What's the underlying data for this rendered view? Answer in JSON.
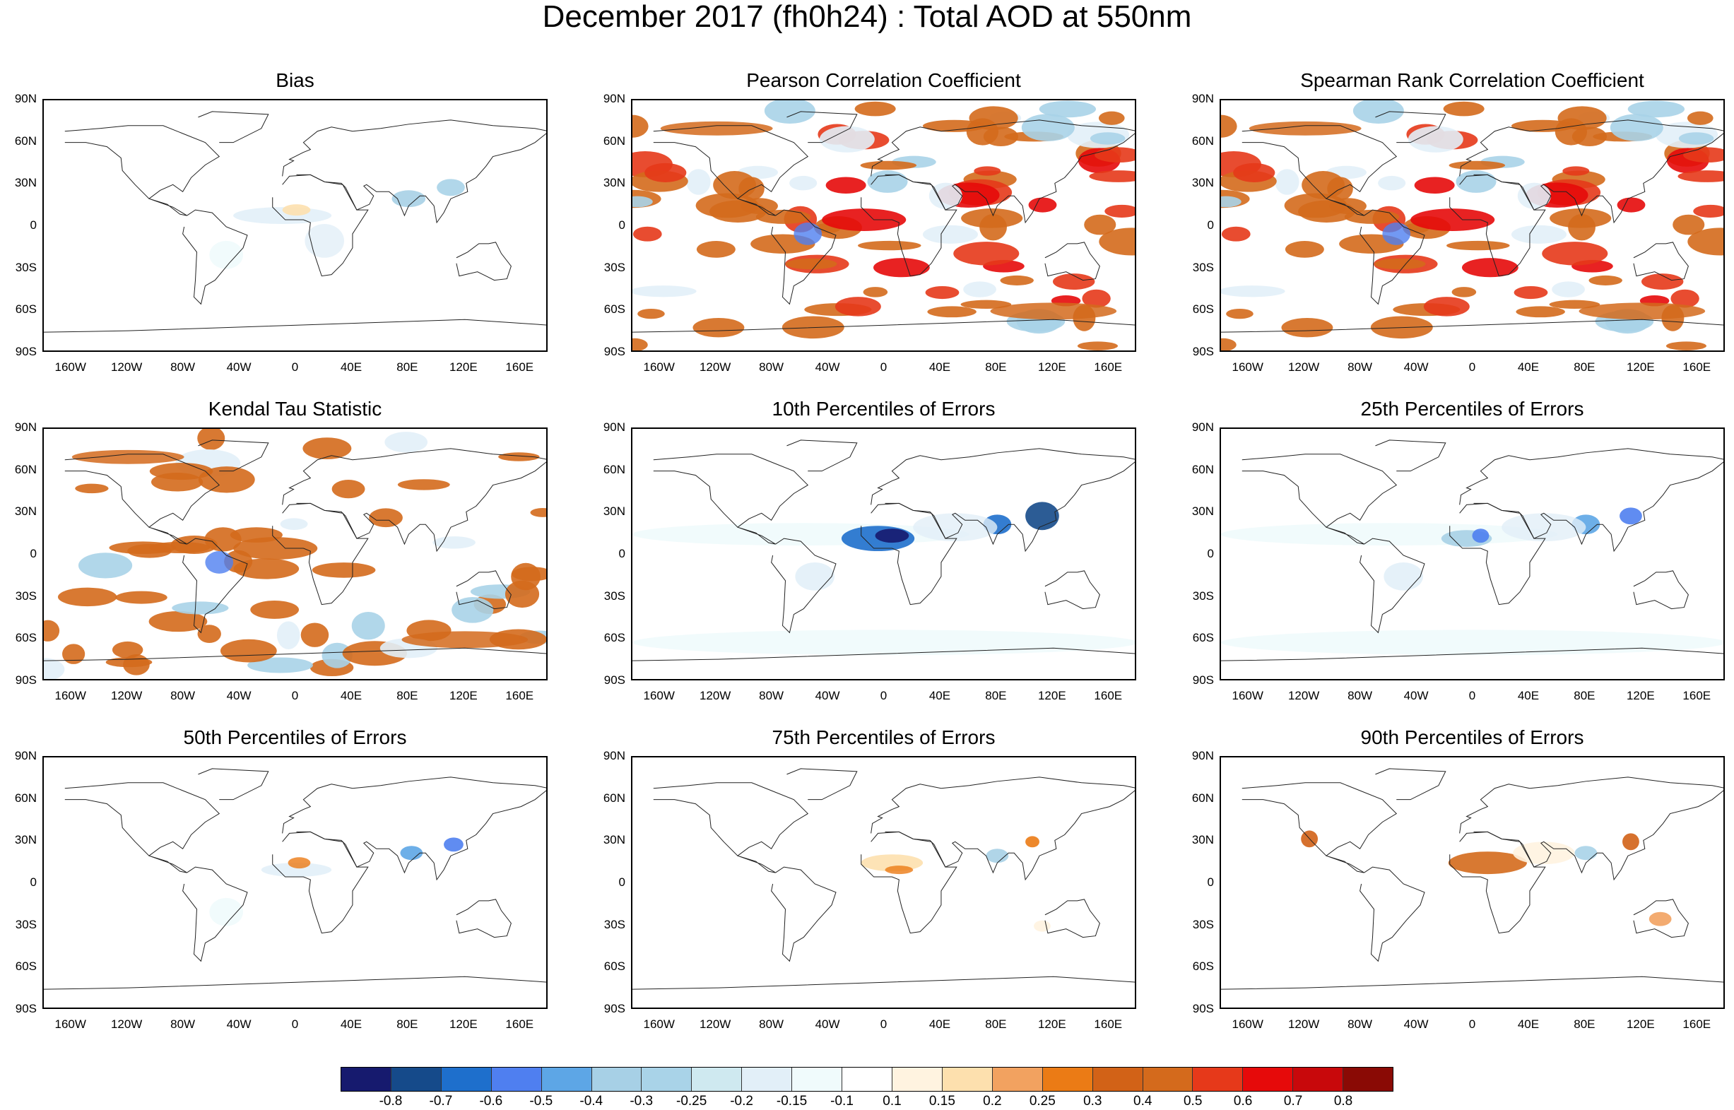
{
  "title": "December 2017 (fh0h24) : Total AOD at 550nm",
  "panels": [
    {
      "title": "Bias",
      "pattern": "bias"
    },
    {
      "title": "Pearson Correlation Coefficient",
      "pattern": "corr"
    },
    {
      "title": "Spearman Rank Correlation Coefficient",
      "pattern": "corr"
    },
    {
      "title": "Kendal Tau Statistic",
      "pattern": "tau"
    },
    {
      "title": "10th Percentiles of Errors",
      "pattern": "p10"
    },
    {
      "title": "25th Percentiles of Errors",
      "pattern": "p25"
    },
    {
      "title": "50th Percentiles of Errors",
      "pattern": "p50"
    },
    {
      "title": "75th Percentiles of Errors",
      "pattern": "p75"
    },
    {
      "title": "90th Percentiles of Errors",
      "pattern": "p90"
    }
  ],
  "lat_labels": [
    "90N",
    "60N",
    "30N",
    "0",
    "30S",
    "60S",
    "90S"
  ],
  "lon_labels": [
    "160W",
    "120W",
    "80W",
    "40W",
    "0",
    "40E",
    "80E",
    "120E",
    "160E"
  ],
  "colorbar": {
    "labels": [
      "-0.8",
      "-0.7",
      "-0.6",
      "-0.5",
      "-0.4",
      "-0.3",
      "-0.25",
      "-0.2",
      "-0.15",
      "-0.1",
      "0.1",
      "0.15",
      "0.2",
      "0.25",
      "0.3",
      "0.4",
      "0.5",
      "0.6",
      "0.7",
      "0.8"
    ],
    "colors": [
      "#161a6e",
      "#154a8a",
      "#1e6fcc",
      "#4f7ff0",
      "#5da6e6",
      "#a7d0e6",
      "#a9d3e8",
      "#cfe9f0",
      "#e2eff8",
      "#f0fbfc",
      "#ffffff",
      "#fff3e0",
      "#fde0ae",
      "#f2a260",
      "#eb7b15",
      "#d26217",
      "#d46a1c",
      "#e6391a",
      "#e60a0a",
      "#c8080b",
      "#8a0a05"
    ]
  }
}
